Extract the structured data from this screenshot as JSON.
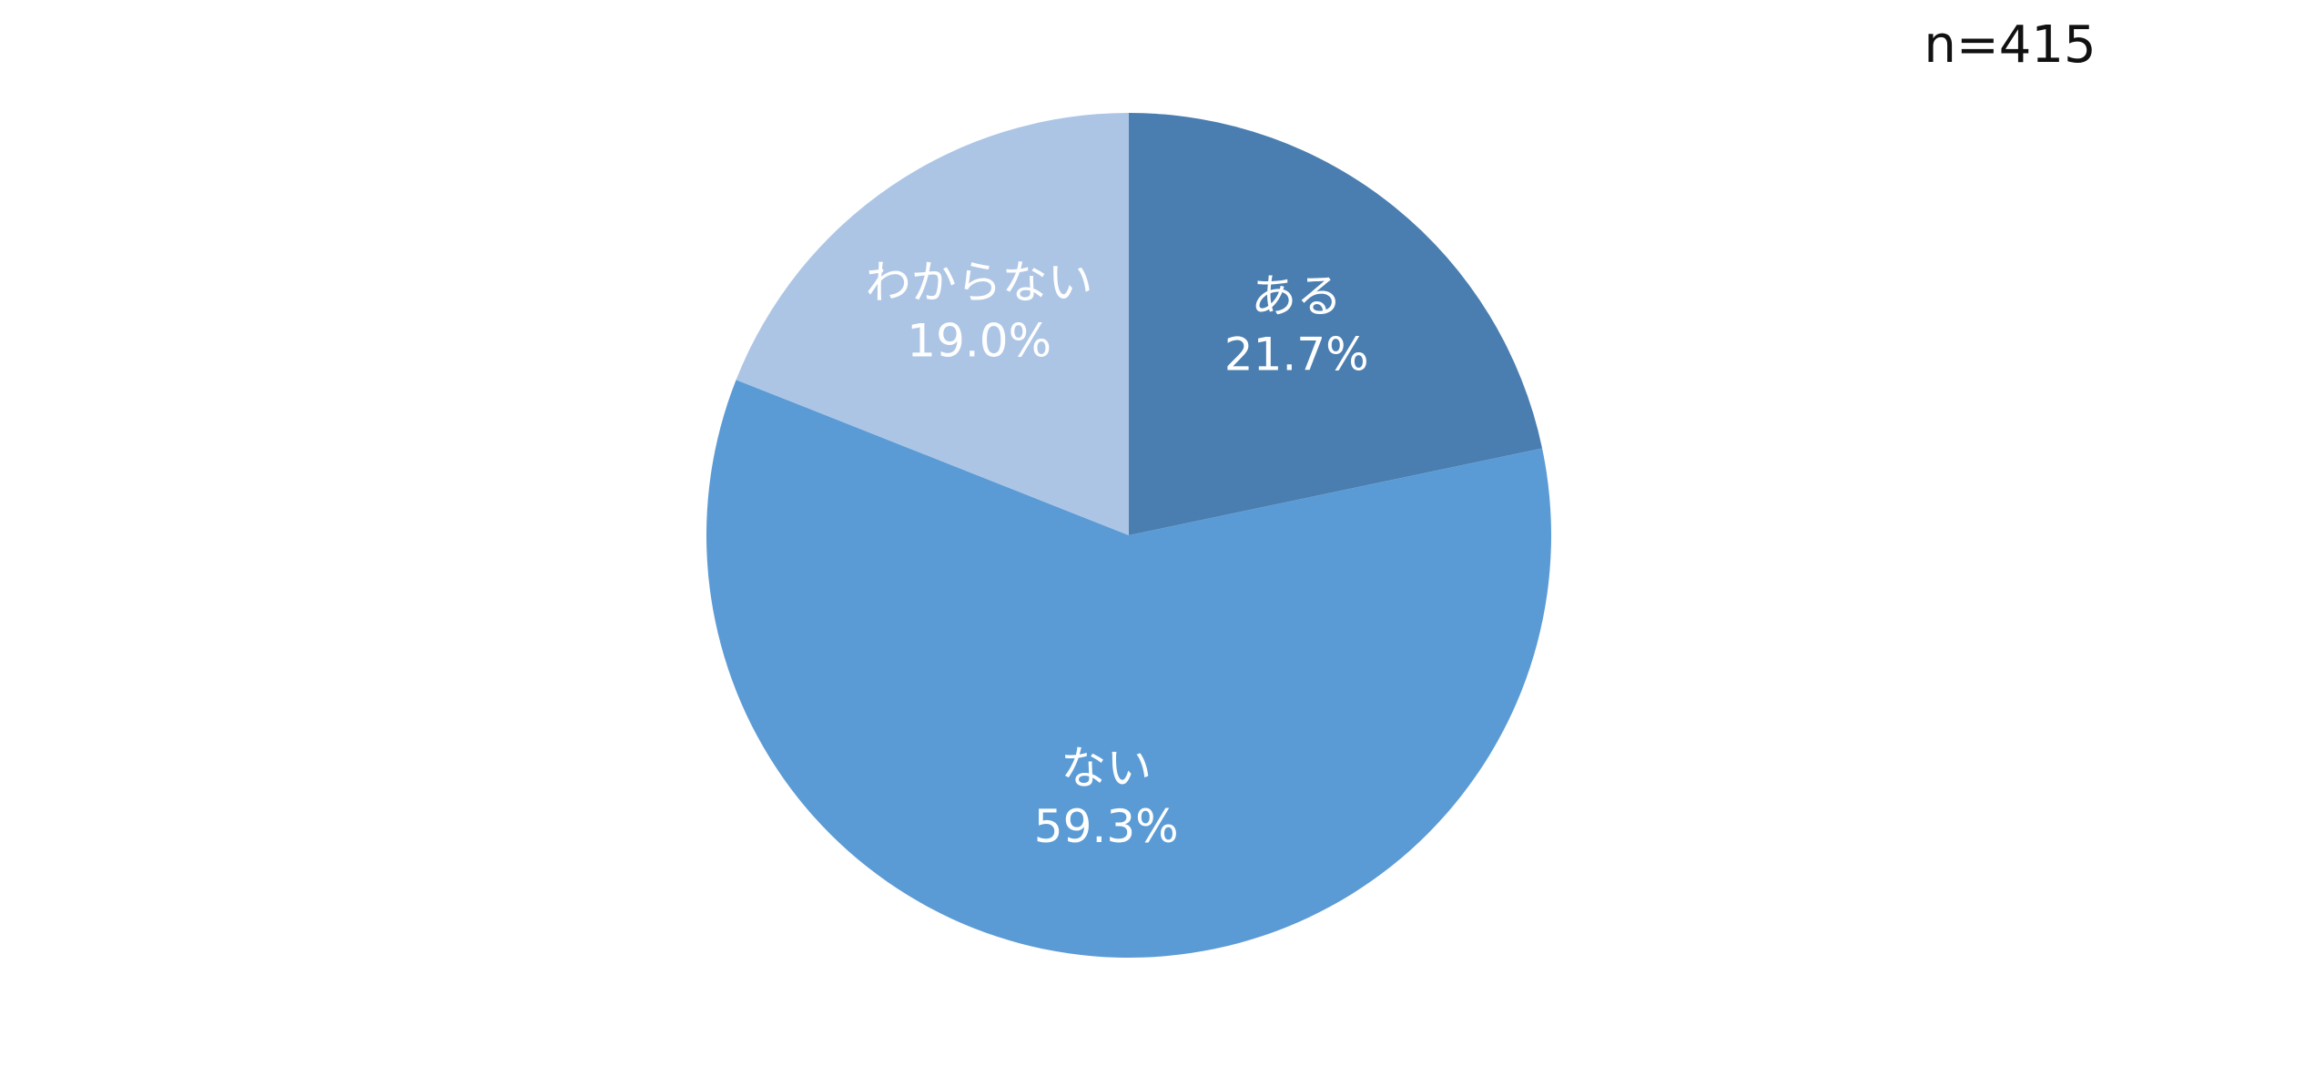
{
  "chart_data": {
    "type": "pie",
    "annotation": "n=415",
    "categories": [
      "ある",
      "ない",
      "わからない"
    ],
    "values": [
      21.7,
      59.3,
      19.0
    ],
    "value_labels": [
      "21.7%",
      "59.3%",
      "19.0%"
    ],
    "colors": [
      "#4a7eb0",
      "#5b9bd5",
      "#adc5e5"
    ]
  }
}
